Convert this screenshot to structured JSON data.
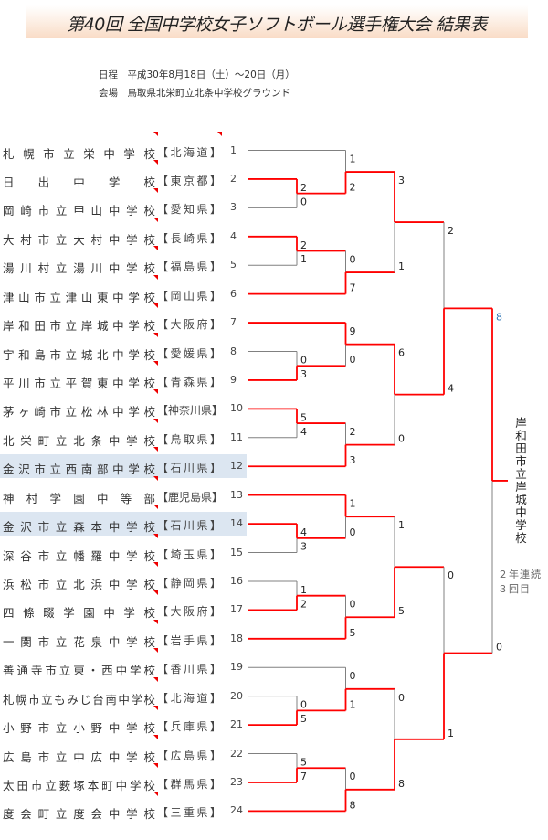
{
  "header": {
    "title": "第40回 全国中学校女子ソフトボール選手権大会 結果表",
    "schedule": "日程　平成30年8月18日（土）～20日（月）",
    "venue": "会場　鳥取県北栄町立北条中学校グラウンド"
  },
  "colors": {
    "winner_line": "#ff0000",
    "loser_line": "#808080",
    "final_score": "#2e75b6",
    "highlight_row": "#dce6f1"
  },
  "teams": [
    {
      "seed": "1",
      "name": "札幌市立栄中学校",
      "pref": "【北海道】"
    },
    {
      "seed": "2",
      "name": "日出中学校",
      "pref": "【東京都】"
    },
    {
      "seed": "3",
      "name": "岡崎市立甲山中学校",
      "pref": "【愛知県】"
    },
    {
      "seed": "4",
      "name": "大村市立大村中学校",
      "pref": "【長崎県】"
    },
    {
      "seed": "5",
      "name": "湯川村立湯川中学校",
      "pref": "【福島県】"
    },
    {
      "seed": "6",
      "name": "津山市立津山東中学校",
      "pref": "【岡山県】"
    },
    {
      "seed": "7",
      "name": "岸和田市立岸城中学校",
      "pref": "【大阪府】"
    },
    {
      "seed": "8",
      "name": "宇和島市立城北中学校",
      "pref": "【愛媛県】"
    },
    {
      "seed": "9",
      "name": "平川市立平賀東中学校",
      "pref": "【青森県】"
    },
    {
      "seed": "10",
      "name": "茅ヶ崎市立松林中学校",
      "pref": "【神奈川県】"
    },
    {
      "seed": "11",
      "name": "北栄町立北条中学校",
      "pref": "【鳥取県】"
    },
    {
      "seed": "12",
      "name": "金沢市立西南部中学校",
      "pref": "【石川県】",
      "highlight": true
    },
    {
      "seed": "13",
      "name": "神村学園中等部",
      "pref": "【鹿児島県】"
    },
    {
      "seed": "14",
      "name": "金沢市立森本中学校",
      "pref": "【石川県】",
      "highlight": true
    },
    {
      "seed": "15",
      "name": "深谷市立幡羅中学校",
      "pref": "【埼玉県】"
    },
    {
      "seed": "16",
      "name": "浜松市立北浜中学校",
      "pref": "【静岡県】"
    },
    {
      "seed": "17",
      "name": "四條畷学園中学校",
      "pref": "【大阪府】"
    },
    {
      "seed": "18",
      "name": "一関市立花泉中学校",
      "pref": "【岩手県】"
    },
    {
      "seed": "19",
      "name": "善通寺市立東・西中学校",
      "pref": "【香川県】"
    },
    {
      "seed": "20",
      "name": "札幌市立もみじ台南中学校",
      "pref": "【北海道】"
    },
    {
      "seed": "21",
      "name": "小野市立小野中学校",
      "pref": "【兵庫県】"
    },
    {
      "seed": "22",
      "name": "広島市立中広中学校",
      "pref": "【広島県】"
    },
    {
      "seed": "23",
      "name": "太田市立薮塚本町中学校",
      "pref": "【群馬県】"
    },
    {
      "seed": "24",
      "name": "度会町立度会中学校",
      "pref": "【三重県】"
    }
  ],
  "bracket": {
    "s": [
      8,
      0
    ],
    "c": [
      {
        "s": [
          2,
          4
        ],
        "c": [
          {
            "s": [
              3,
              1
            ],
            "c": [
              {
                "s": [
                  1,
                  2
                ],
                "c": [
                  1,
                  {
                    "s": [
                      2,
                      0
                    ],
                    "c": [
                      2,
                      3
                    ]
                  }
                ]
              },
              {
                "s": [
                  0,
                  7
                ],
                "c": [
                  {
                    "s": [
                      2,
                      1
                    ],
                    "c": [
                      4,
                      5
                    ]
                  },
                  6
                ]
              }
            ]
          },
          {
            "s": [
              6,
              0
            ],
            "c": [
              {
                "s": [
                  9,
                  0
                ],
                "c": [
                  7,
                  {
                    "s": [
                      0,
                      3
                    ],
                    "c": [
                      8,
                      9
                    ]
                  }
                ]
              },
              {
                "s": [
                  2,
                  3
                ],
                "c": [
                  {
                    "s": [
                      5,
                      4
                    ],
                    "c": [
                      10,
                      11
                    ]
                  },
                  12
                ]
              }
            ]
          }
        ]
      },
      {
        "s": [
          0,
          1
        ],
        "c": [
          {
            "s": [
              1,
              5
            ],
            "c": [
              {
                "s": [
                  1,
                  0
                ],
                "c": [
                  13,
                  {
                    "s": [
                      4,
                      3
                    ],
                    "c": [
                      14,
                      15
                    ]
                  }
                ]
              },
              {
                "s": [
                  0,
                  5
                ],
                "c": [
                  {
                    "s": [
                      1,
                      2
                    ],
                    "c": [
                      16,
                      17
                    ]
                  },
                  18
                ]
              }
            ]
          },
          {
            "s": [
              0,
              8
            ],
            "c": [
              {
                "s": [
                  0,
                  1
                ],
                "c": [
                  19,
                  {
                    "s": [
                      0,
                      5
                    ],
                    "c": [
                      20,
                      21
                    ]
                  }
                ]
              },
              {
                "s": [
                  0,
                  8
                ],
                "c": [
                  {
                    "s": [
                      5,
                      7
                    ],
                    "c": [
                      22,
                      23
                    ]
                  },
                  24
                ]
              }
            ]
          }
        ]
      }
    ]
  },
  "champion": {
    "name": "岸和田市立岸城中学校",
    "note1": "２年連続",
    "note2": "３回目"
  }
}
